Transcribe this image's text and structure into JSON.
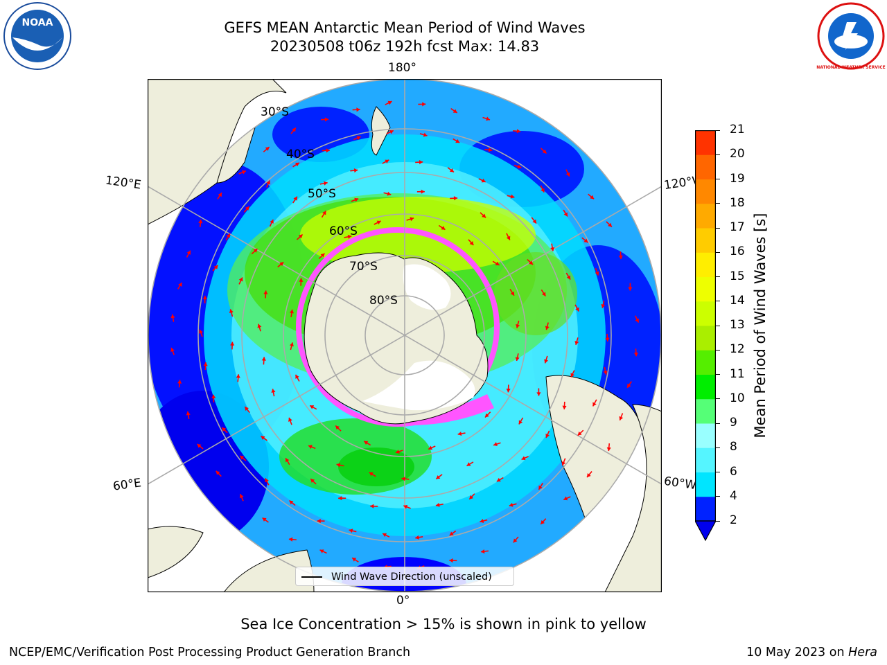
{
  "header": {
    "title": "GEFS MEAN Antarctic Mean Period of Wind Waves",
    "subtitle": "20230508 t06z 192h fcst   Max: 14.83"
  },
  "map": {
    "projection": "south-polar-stereographic",
    "longitude_labels": {
      "top": "180°",
      "bottom": "0°",
      "left_upper": "120°E",
      "left_lower": "60°E",
      "right_upper": "120°W",
      "right_lower": "60°W"
    },
    "latitude_labels": [
      "30°S",
      "40°S",
      "50°S",
      "60°S",
      "70°S",
      "80°S"
    ],
    "colors": {
      "land": "#eeeedc",
      "sea_ice": "#ff55ff",
      "grid": "#aaaaaa",
      "arrows": "#ff0000"
    }
  },
  "colorbar": {
    "label": "Mean Period of Wind Waves [s]",
    "ticks": [
      "2",
      "4",
      "6",
      "8",
      "9",
      "10",
      "11",
      "12",
      "13",
      "14",
      "15",
      "16",
      "17",
      "18",
      "19",
      "20",
      "21"
    ],
    "colors": [
      "#0022ff",
      "#00e5ff",
      "#55f5ff",
      "#99ffff",
      "#55ff77",
      "#00ee00",
      "#55ee00",
      "#aaee00",
      "#ccff00",
      "#eeff00",
      "#ffee00",
      "#ffcc00",
      "#ffaa00",
      "#ff8800",
      "#ff6600",
      "#ff3300",
      "#ff0000"
    ]
  },
  "legend": {
    "label": "Wind Wave Direction (unscaled)"
  },
  "note": "Sea Ice Concentration > 15% is shown in pink to yellow",
  "footer": {
    "left": "NCEP/EMC/Verification Post Processing Product Generation Branch",
    "right_date": "10 May 2023 on",
    "right_machine": "Hera"
  },
  "logos": {
    "left": "NOAA",
    "right": "NATIONAL WEATHER SERVICE"
  }
}
